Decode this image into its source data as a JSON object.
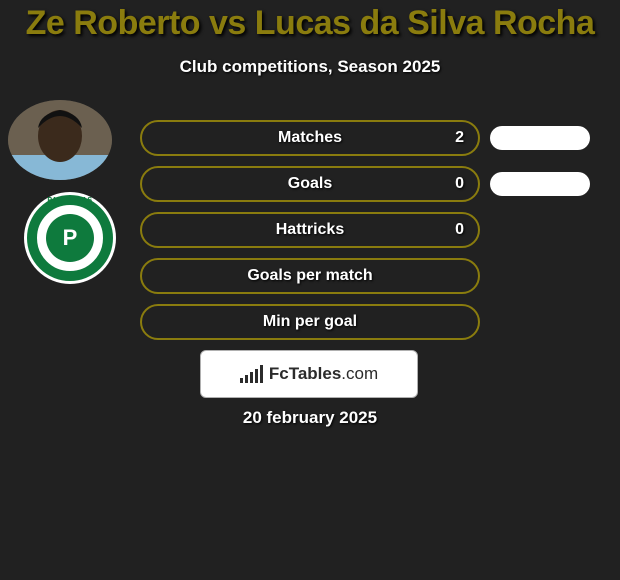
{
  "background_color": "#212121",
  "title": {
    "text": "Ze Roberto vs Lucas da Silva Rocha",
    "color": "#8a7c0e",
    "fontsize": 34
  },
  "subtitle": {
    "text": "Club competitions, Season 2025",
    "color": "#fefefe",
    "fontsize": 17
  },
  "player_avatar": {
    "skin": "#3b2a1c",
    "shirt": "#87b8d6"
  },
  "club_badge": {
    "label": "PALMEIRAS",
    "ring_color": "#0e7a3d",
    "inner_color": "#0e7a3d",
    "symbol": "P"
  },
  "pill_border_color": "#8a7c0e",
  "right_pill_color": "#ffffff",
  "stats": [
    {
      "label": "Matches",
      "value": "2",
      "show_right": true
    },
    {
      "label": "Goals",
      "value": "0",
      "show_right": true
    },
    {
      "label": "Hattricks",
      "value": "0",
      "show_right": false
    },
    {
      "label": "Goals per match",
      "value": "",
      "show_right": false
    },
    {
      "label": "Min per goal",
      "value": "",
      "show_right": false
    }
  ],
  "branding": {
    "name": "FcTables",
    "domain": ".com",
    "bar_color": "#2b2b2b",
    "bar_heights": [
      5,
      8,
      11,
      14,
      18
    ]
  },
  "date": {
    "text": "20 february 2025",
    "color": "#fefefe"
  }
}
